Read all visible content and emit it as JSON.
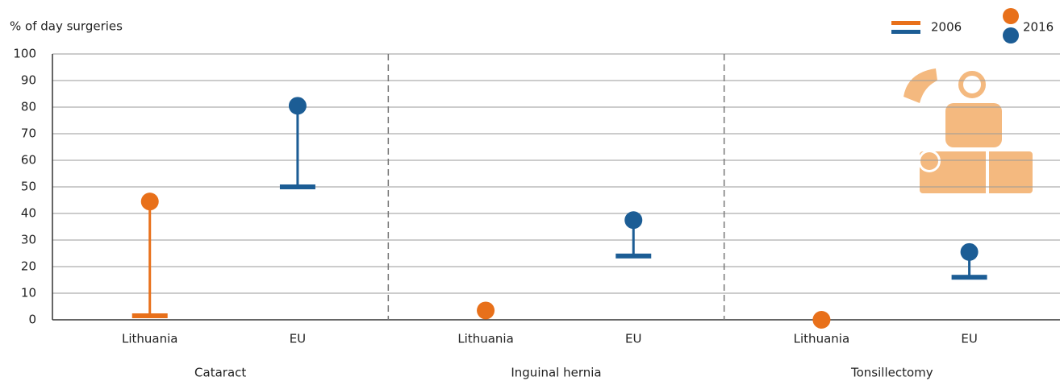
{
  "chart_data": {
    "type": "dumbbell",
    "y_label": "% of day surgeries",
    "groups": [
      "Cataract",
      "Inguinal hernia",
      "Tonsillectomy"
    ],
    "categories": [
      "Lithuania",
      "EU",
      "Lithuania",
      "EU",
      "Lithuania",
      "EU"
    ],
    "colors": [
      "#e8701a",
      "#1c5d95"
    ],
    "series": [
      {
        "name": "2006",
        "values": [
          1.5,
          50,
          null,
          24,
          null,
          16
        ]
      },
      {
        "name": "2016",
        "values": [
          44.5,
          80.5,
          3.5,
          37.5,
          0,
          25.5
        ]
      }
    ],
    "ylim": [
      0,
      100
    ],
    "yticks": [
      0,
      10,
      20,
      30,
      40,
      50,
      60,
      70,
      80,
      90,
      100
    ],
    "grid": true
  }
}
